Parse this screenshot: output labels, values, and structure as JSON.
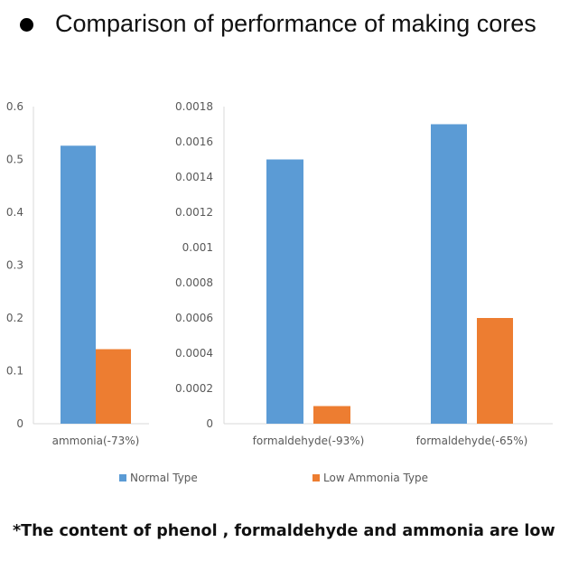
{
  "header": {
    "title": "Comparison of performance of making cores",
    "bullet_icon": "bullet-dot-icon"
  },
  "colors": {
    "normal": "#5B9BD5",
    "low": "#ED7D31",
    "axis": "#D9D9D9",
    "text": "#595959"
  },
  "chart_data": [
    {
      "type": "bar",
      "title": "",
      "categories": [
        "ammonia(-73%)"
      ],
      "series": [
        {
          "name": "Normal Type",
          "values": [
            0.526
          ]
        },
        {
          "name": "Low Ammonia Type",
          "values": [
            0.141
          ]
        }
      ],
      "ylim": [
        0,
        0.6
      ],
      "yticks": [
        "0",
        "0.1",
        "0.2",
        "0.3",
        "0.4",
        "0.5",
        "0.6"
      ],
      "xlabel": "",
      "ylabel": "",
      "grid": false
    },
    {
      "type": "bar",
      "title": "",
      "categories": [
        "formaldehyde(-93%)",
        "formaldehyde(-65%)"
      ],
      "series": [
        {
          "name": "Normal Type",
          "values": [
            0.0015,
            0.0017
          ]
        },
        {
          "name": "Low Ammonia Type",
          "values": [
            0.0001,
            0.0006
          ]
        }
      ],
      "ylim": [
        0,
        0.0018
      ],
      "yticks": [
        "0",
        "0.0002",
        "0.0004",
        "0.0006",
        "0.0008",
        "0.001",
        "0.0012",
        "0.0014",
        "0.0016",
        "0.0018"
      ],
      "xlabel": "",
      "ylabel": "",
      "grid": false
    }
  ],
  "legend": {
    "items": [
      {
        "label": "Normal Type",
        "color_key": "normal"
      },
      {
        "label": "Low Ammonia Type",
        "color_key": "low"
      }
    ],
    "placement": "bottom"
  },
  "footnote": "*The content of phenol , formaldehyde and ammonia are low"
}
